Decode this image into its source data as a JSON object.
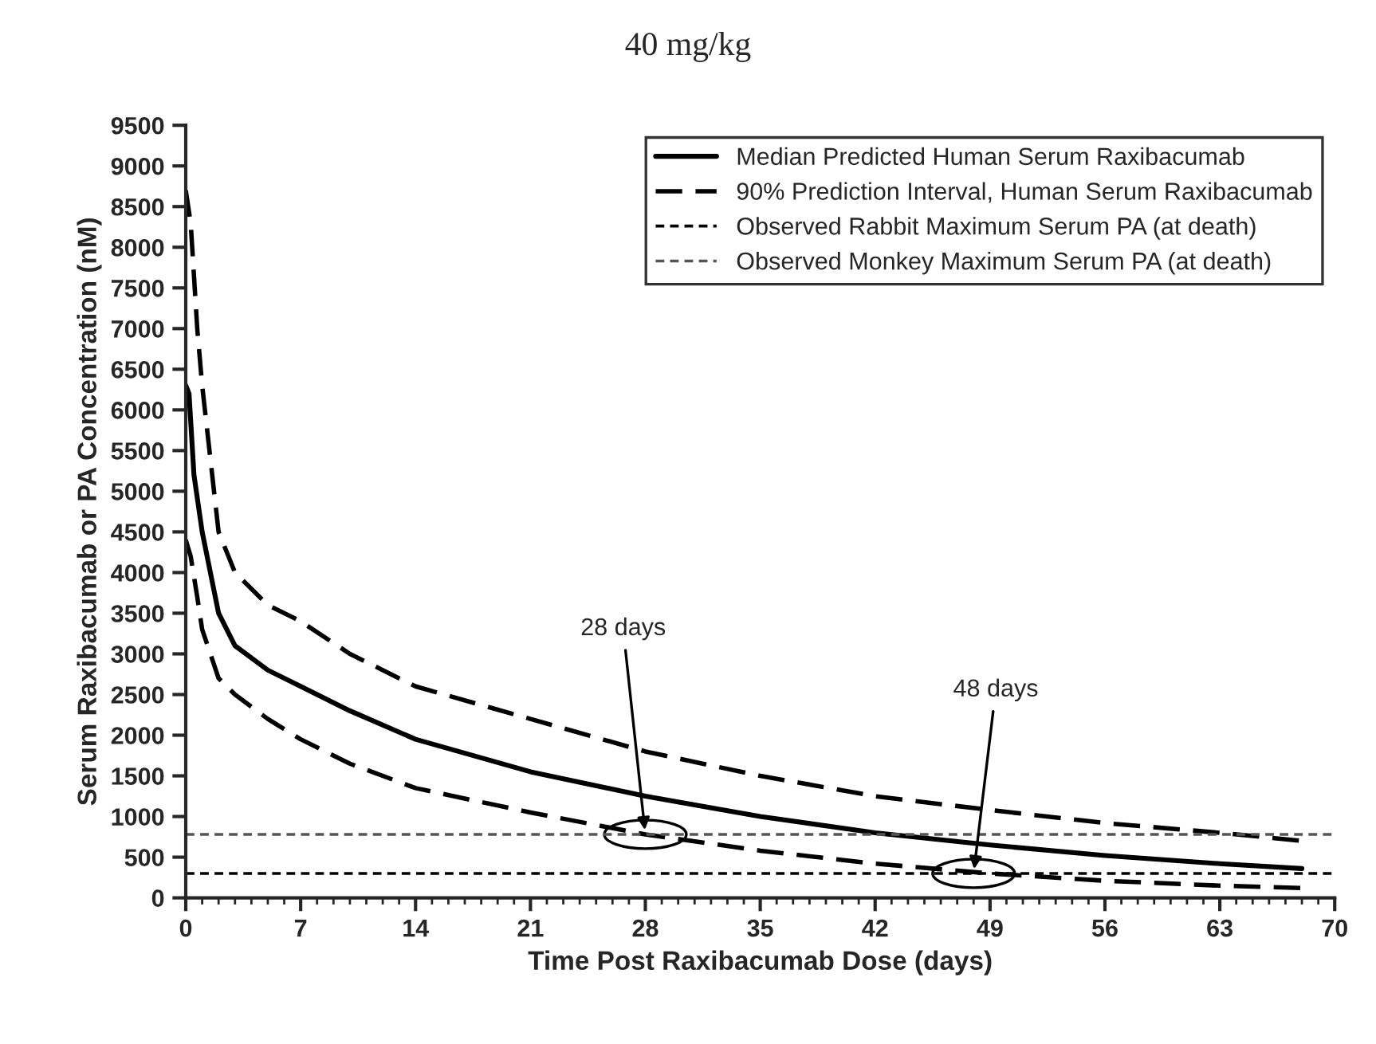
{
  "chart_data": {
    "type": "line",
    "title": "40 mg/kg",
    "xlabel": "Time Post Raxibacumab Dose (days)",
    "ylabel": "Serum Raxibacumab or PA Concentration (nM)",
    "series": [
      {
        "name": "Median Predicted Human Serum Raxibacumab",
        "color": "#000000",
        "line_style": "solid",
        "x": [
          0,
          0.2,
          0.5,
          1,
          2,
          3,
          5,
          7,
          10,
          14,
          21,
          28,
          35,
          42,
          49,
          56,
          63,
          68
        ],
        "values": [
          6300,
          6200,
          5200,
          4500,
          3500,
          3100,
          2800,
          2600,
          2300,
          1950,
          1550,
          1250,
          1000,
          800,
          650,
          520,
          420,
          360
        ]
      },
      {
        "name": "90% Prediction Interval, Human Serum Raxibacumab",
        "color": "#000000",
        "line_style": "dashed",
        "x": [
          0,
          0.3,
          0.7,
          1,
          2,
          3,
          5,
          7,
          10,
          14,
          21,
          28,
          35,
          42,
          49,
          56,
          63,
          68
        ],
        "values": [
          8700,
          8300,
          7000,
          6300,
          4500,
          4000,
          3600,
          3400,
          3000,
          2600,
          2200,
          1800,
          1500,
          1250,
          1080,
          920,
          800,
          700
        ]
      },
      {
        "color": "#000000",
        "line_style": "dashed",
        "x": [
          0,
          0.3,
          0.7,
          1,
          2,
          3,
          5,
          7,
          10,
          14,
          21,
          28,
          35,
          42,
          49,
          56,
          63,
          68
        ],
        "values": [
          4400,
          4200,
          3700,
          3300,
          2700,
          2500,
          2200,
          1950,
          1650,
          1350,
          1050,
          780,
          580,
          420,
          300,
          210,
          150,
          120
        ]
      },
      {
        "name": "Observed Rabbit Maximum Serum PA (at death)",
        "color": "#000000",
        "line_style": "dotted",
        "x": [
          0,
          70
        ],
        "values": [
          300,
          300
        ]
      },
      {
        "name": "Observed Monkey Maximum Serum PA (at death)",
        "color": "#555555",
        "line_style": "dotted",
        "x": [
          0,
          70
        ],
        "values": [
          780,
          780
        ]
      }
    ],
    "annotations": [
      {
        "text": "28 days",
        "x": 28,
        "y": 780
      },
      {
        "text": "48 days",
        "x": 48,
        "y": 300
      }
    ],
    "xlim": [
      0,
      70
    ],
    "xticks": [
      0,
      7,
      14,
      21,
      28,
      35,
      42,
      49,
      56,
      63,
      70
    ],
    "ylim": [
      0,
      9500
    ],
    "yticks": [
      0,
      500,
      1000,
      1500,
      2000,
      2500,
      3000,
      3500,
      4000,
      4500,
      5000,
      5500,
      6000,
      6500,
      7000,
      7500,
      8000,
      8500,
      9000,
      9500
    ],
    "legend": "top right",
    "grid": false
  }
}
